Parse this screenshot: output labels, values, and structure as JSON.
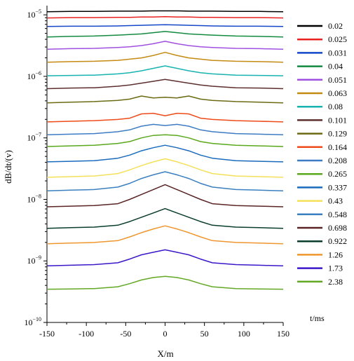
{
  "chart_data": {
    "type": "line",
    "xlabel": "X/m",
    "ylabel": "dB/dt/(v)",
    "xlim": [
      -150,
      150
    ],
    "ylog": true,
    "ylim_exp": [
      -10,
      -4.85
    ],
    "x_ticks": [
      -150,
      -100,
      -50,
      0,
      50,
      100,
      150
    ],
    "y_ticks_exp": [
      -10,
      -9,
      -8,
      -7,
      -6,
      -5
    ],
    "grid": false,
    "legend_title": "t/ms",
    "legend_position": "right",
    "x": [
      -150,
      -120,
      -90,
      -60,
      -45,
      -30,
      -15,
      0,
      15,
      30,
      45,
      60,
      90,
      120,
      150
    ],
    "series": [
      {
        "name": "0.02",
        "color": "#000000",
        "exp": [
          -4.95,
          -4.945,
          -4.945,
          -4.94,
          -4.94,
          -4.94,
          -4.935,
          -4.935,
          -4.935,
          -4.94,
          -4.94,
          -4.94,
          -4.945,
          -4.945,
          -4.95
        ]
      },
      {
        "name": "0.025",
        "color": "#e8201f",
        "exp": [
          -5.05,
          -5.045,
          -5.045,
          -5.04,
          -5.04,
          -5.035,
          -5.035,
          -5.03,
          -5.035,
          -5.035,
          -5.04,
          -5.04,
          -5.045,
          -5.045,
          -5.05
        ]
      },
      {
        "name": "0.031",
        "color": "#1447c8",
        "exp": [
          -5.19,
          -5.185,
          -5.185,
          -5.18,
          -5.175,
          -5.17,
          -5.165,
          -5.16,
          -5.165,
          -5.17,
          -5.175,
          -5.18,
          -5.185,
          -5.185,
          -5.19
        ]
      },
      {
        "name": "0.04",
        "color": "#138a3f",
        "exp": [
          -5.36,
          -5.35,
          -5.345,
          -5.33,
          -5.32,
          -5.31,
          -5.29,
          -5.27,
          -5.29,
          -5.31,
          -5.32,
          -5.33,
          -5.345,
          -5.35,
          -5.36
        ]
      },
      {
        "name": "0.051",
        "color": "#a050e0",
        "exp": [
          -5.56,
          -5.55,
          -5.545,
          -5.53,
          -5.52,
          -5.5,
          -5.47,
          -5.43,
          -5.47,
          -5.5,
          -5.52,
          -5.53,
          -5.545,
          -5.55,
          -5.56
        ]
      },
      {
        "name": "0.063",
        "color": "#c58a12",
        "exp": [
          -5.77,
          -5.76,
          -5.755,
          -5.74,
          -5.72,
          -5.7,
          -5.66,
          -5.61,
          -5.66,
          -5.7,
          -5.72,
          -5.74,
          -5.755,
          -5.76,
          -5.77
        ]
      },
      {
        "name": "0.08",
        "color": "#17b3b0",
        "exp": [
          -5.99,
          -5.985,
          -5.98,
          -5.96,
          -5.94,
          -5.91,
          -5.87,
          -5.83,
          -5.87,
          -5.91,
          -5.94,
          -5.96,
          -5.98,
          -5.985,
          -5.99
        ]
      },
      {
        "name": "0.101",
        "color": "#5c2e2e",
        "exp": [
          -6.2,
          -6.19,
          -6.185,
          -6.16,
          -6.14,
          -6.11,
          -6.08,
          -6.05,
          -6.08,
          -6.11,
          -6.14,
          -6.16,
          -6.185,
          -6.19,
          -6.2
        ]
      },
      {
        "name": "0.129",
        "color": "#6b6a12",
        "exp": [
          -6.43,
          -6.42,
          -6.41,
          -6.39,
          -6.37,
          -6.32,
          -6.35,
          -6.34,
          -6.35,
          -6.32,
          -6.37,
          -6.39,
          -6.41,
          -6.42,
          -6.43
        ]
      },
      {
        "name": "0.164",
        "color": "#ef4a19",
        "exp": [
          -6.74,
          -6.73,
          -6.72,
          -6.7,
          -6.68,
          -6.61,
          -6.6,
          -6.64,
          -6.6,
          -6.61,
          -6.68,
          -6.7,
          -6.72,
          -6.73,
          -6.74
        ]
      },
      {
        "name": "0.208",
        "color": "#3d7cc4",
        "exp": [
          -6.95,
          -6.94,
          -6.93,
          -6.9,
          -6.87,
          -6.81,
          -6.78,
          -6.8,
          -6.78,
          -6.81,
          -6.87,
          -6.9,
          -6.93,
          -6.94,
          -6.95
        ]
      },
      {
        "name": "0.265",
        "color": "#5aa81c",
        "exp": [
          -7.14,
          -7.13,
          -7.12,
          -7.09,
          -7.06,
          -7.0,
          -6.96,
          -6.95,
          -6.96,
          -7.0,
          -7.06,
          -7.09,
          -7.12,
          -7.13,
          -7.14
        ]
      },
      {
        "name": "0.337",
        "color": "#1a6bbd",
        "exp": [
          -7.39,
          -7.38,
          -7.37,
          -7.33,
          -7.28,
          -7.21,
          -7.16,
          -7.12,
          -7.16,
          -7.21,
          -7.28,
          -7.33,
          -7.37,
          -7.38,
          -7.39
        ]
      },
      {
        "name": "0.43",
        "color": "#f5e05a",
        "exp": [
          -7.64,
          -7.63,
          -7.62,
          -7.58,
          -7.52,
          -7.45,
          -7.39,
          -7.34,
          -7.39,
          -7.45,
          -7.52,
          -7.58,
          -7.62,
          -7.63,
          -7.64
        ]
      },
      {
        "name": "0.548",
        "color": "#3a7fc0",
        "exp": [
          -7.86,
          -7.85,
          -7.84,
          -7.8,
          -7.74,
          -7.66,
          -7.6,
          -7.55,
          -7.6,
          -7.66,
          -7.74,
          -7.8,
          -7.84,
          -7.85,
          -7.86
        ]
      },
      {
        "name": "0.698",
        "color": "#5a2424",
        "exp": [
          -8.12,
          -8.11,
          -8.1,
          -8.07,
          -8.0,
          -7.92,
          -7.84,
          -7.76,
          -7.84,
          -7.92,
          -8.0,
          -8.07,
          -8.1,
          -8.11,
          -8.12
        ]
      },
      {
        "name": "0.922",
        "color": "#0a3d2a",
        "exp": [
          -8.47,
          -8.46,
          -8.45,
          -8.42,
          -8.36,
          -8.29,
          -8.22,
          -8.15,
          -8.22,
          -8.29,
          -8.36,
          -8.42,
          -8.45,
          -8.46,
          -8.47
        ]
      },
      {
        "name": "1.26",
        "color": "#f0962e",
        "exp": [
          -8.72,
          -8.71,
          -8.7,
          -8.67,
          -8.61,
          -8.54,
          -8.48,
          -8.43,
          -8.48,
          -8.54,
          -8.61,
          -8.67,
          -8.7,
          -8.71,
          -8.72
        ]
      },
      {
        "name": "1.73",
        "color": "#3b17c9",
        "exp": [
          -9.08,
          -9.07,
          -9.06,
          -9.03,
          -8.97,
          -8.9,
          -8.86,
          -8.82,
          -8.86,
          -8.9,
          -8.97,
          -9.03,
          -9.06,
          -9.07,
          -9.08
        ]
      },
      {
        "name": "2.38",
        "color": "#62a824",
        "exp": [
          -9.46,
          -9.455,
          -9.45,
          -9.42,
          -9.37,
          -9.31,
          -9.27,
          -9.25,
          -9.27,
          -9.31,
          -9.37,
          -9.42,
          -9.45,
          -9.455,
          -9.46
        ]
      }
    ]
  }
}
